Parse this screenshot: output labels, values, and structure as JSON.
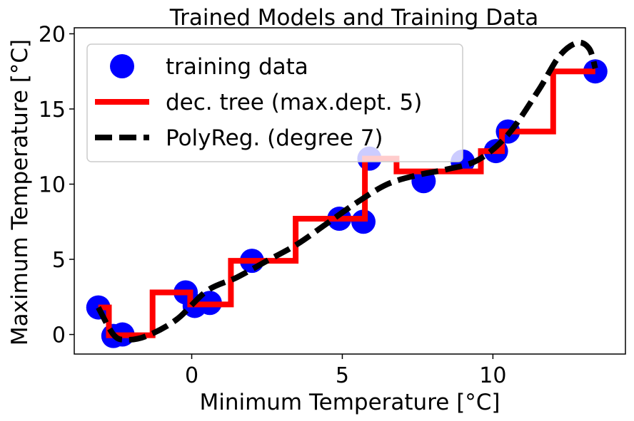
{
  "chart_data": {
    "type": "scatter+line",
    "title": "Trained Models and Training Data",
    "xlabel": "Minimum Temperature [°C]",
    "ylabel": "Maximum Temperature [°C]",
    "xlim": [
      -3.9,
      14.4
    ],
    "ylim": [
      -1.3,
      20.4
    ],
    "xticks": [
      0,
      5,
      10
    ],
    "yticks": [
      0,
      5,
      10,
      15,
      20
    ],
    "legend_position": "upper left",
    "grid": false,
    "series": [
      {
        "name": "training data",
        "kind": "scatter",
        "color": "#0000ff",
        "points": [
          [
            -3.1,
            1.8
          ],
          [
            -2.6,
            -0.1
          ],
          [
            -2.3,
            0.0
          ],
          [
            -0.2,
            2.8
          ],
          [
            0.1,
            1.9
          ],
          [
            0.6,
            2.1
          ],
          [
            2.0,
            4.9
          ],
          [
            4.9,
            7.7
          ],
          [
            5.7,
            7.5
          ],
          [
            5.9,
            11.7
          ],
          [
            7.7,
            10.2
          ],
          [
            9.0,
            11.5
          ],
          [
            10.1,
            12.2
          ],
          [
            10.5,
            13.5
          ],
          [
            13.4,
            17.5
          ]
        ]
      },
      {
        "name": "dec. tree (max.dept. 5)",
        "kind": "step",
        "color": "#ff0000",
        "points": [
          [
            -3.1,
            1.8
          ],
          [
            -2.75,
            1.8
          ],
          [
            -2.75,
            -0.05
          ],
          [
            -1.3,
            -0.05
          ],
          [
            -1.3,
            2.8
          ],
          [
            -0.05,
            2.8
          ],
          [
            -0.05,
            2.0
          ],
          [
            1.3,
            2.0
          ],
          [
            1.3,
            4.9
          ],
          [
            3.45,
            4.9
          ],
          [
            3.45,
            7.7
          ],
          [
            5.75,
            7.7
          ],
          [
            5.75,
            11.7
          ],
          [
            6.8,
            11.7
          ],
          [
            6.8,
            10.85
          ],
          [
            9.6,
            10.85
          ],
          [
            9.6,
            12.2
          ],
          [
            10.3,
            12.2
          ],
          [
            10.3,
            13.5
          ],
          [
            12.0,
            13.5
          ],
          [
            12.0,
            17.5
          ],
          [
            13.4,
            17.5
          ]
        ]
      },
      {
        "name": "PolyReg. (degree 7)",
        "kind": "line",
        "style": "dashed",
        "color": "#000000",
        "points": [
          [
            -3.1,
            1.8
          ],
          [
            -2.6,
            0.0
          ],
          [
            -2.2,
            -0.35
          ],
          [
            -1.5,
            -0.1
          ],
          [
            -0.5,
            1.0
          ],
          [
            0.5,
            2.9
          ],
          [
            1.5,
            3.8
          ],
          [
            2.5,
            4.9
          ],
          [
            3.5,
            6.0
          ],
          [
            4.5,
            7.4
          ],
          [
            5.5,
            8.8
          ],
          [
            6.5,
            10.0
          ],
          [
            7.5,
            10.6
          ],
          [
            8.5,
            11.0
          ],
          [
            9.5,
            11.6
          ],
          [
            10.5,
            13.3
          ],
          [
            11.5,
            16.2
          ],
          [
            12.2,
            18.5
          ],
          [
            12.8,
            19.4
          ],
          [
            13.2,
            19.0
          ],
          [
            13.4,
            17.7
          ]
        ]
      }
    ]
  }
}
